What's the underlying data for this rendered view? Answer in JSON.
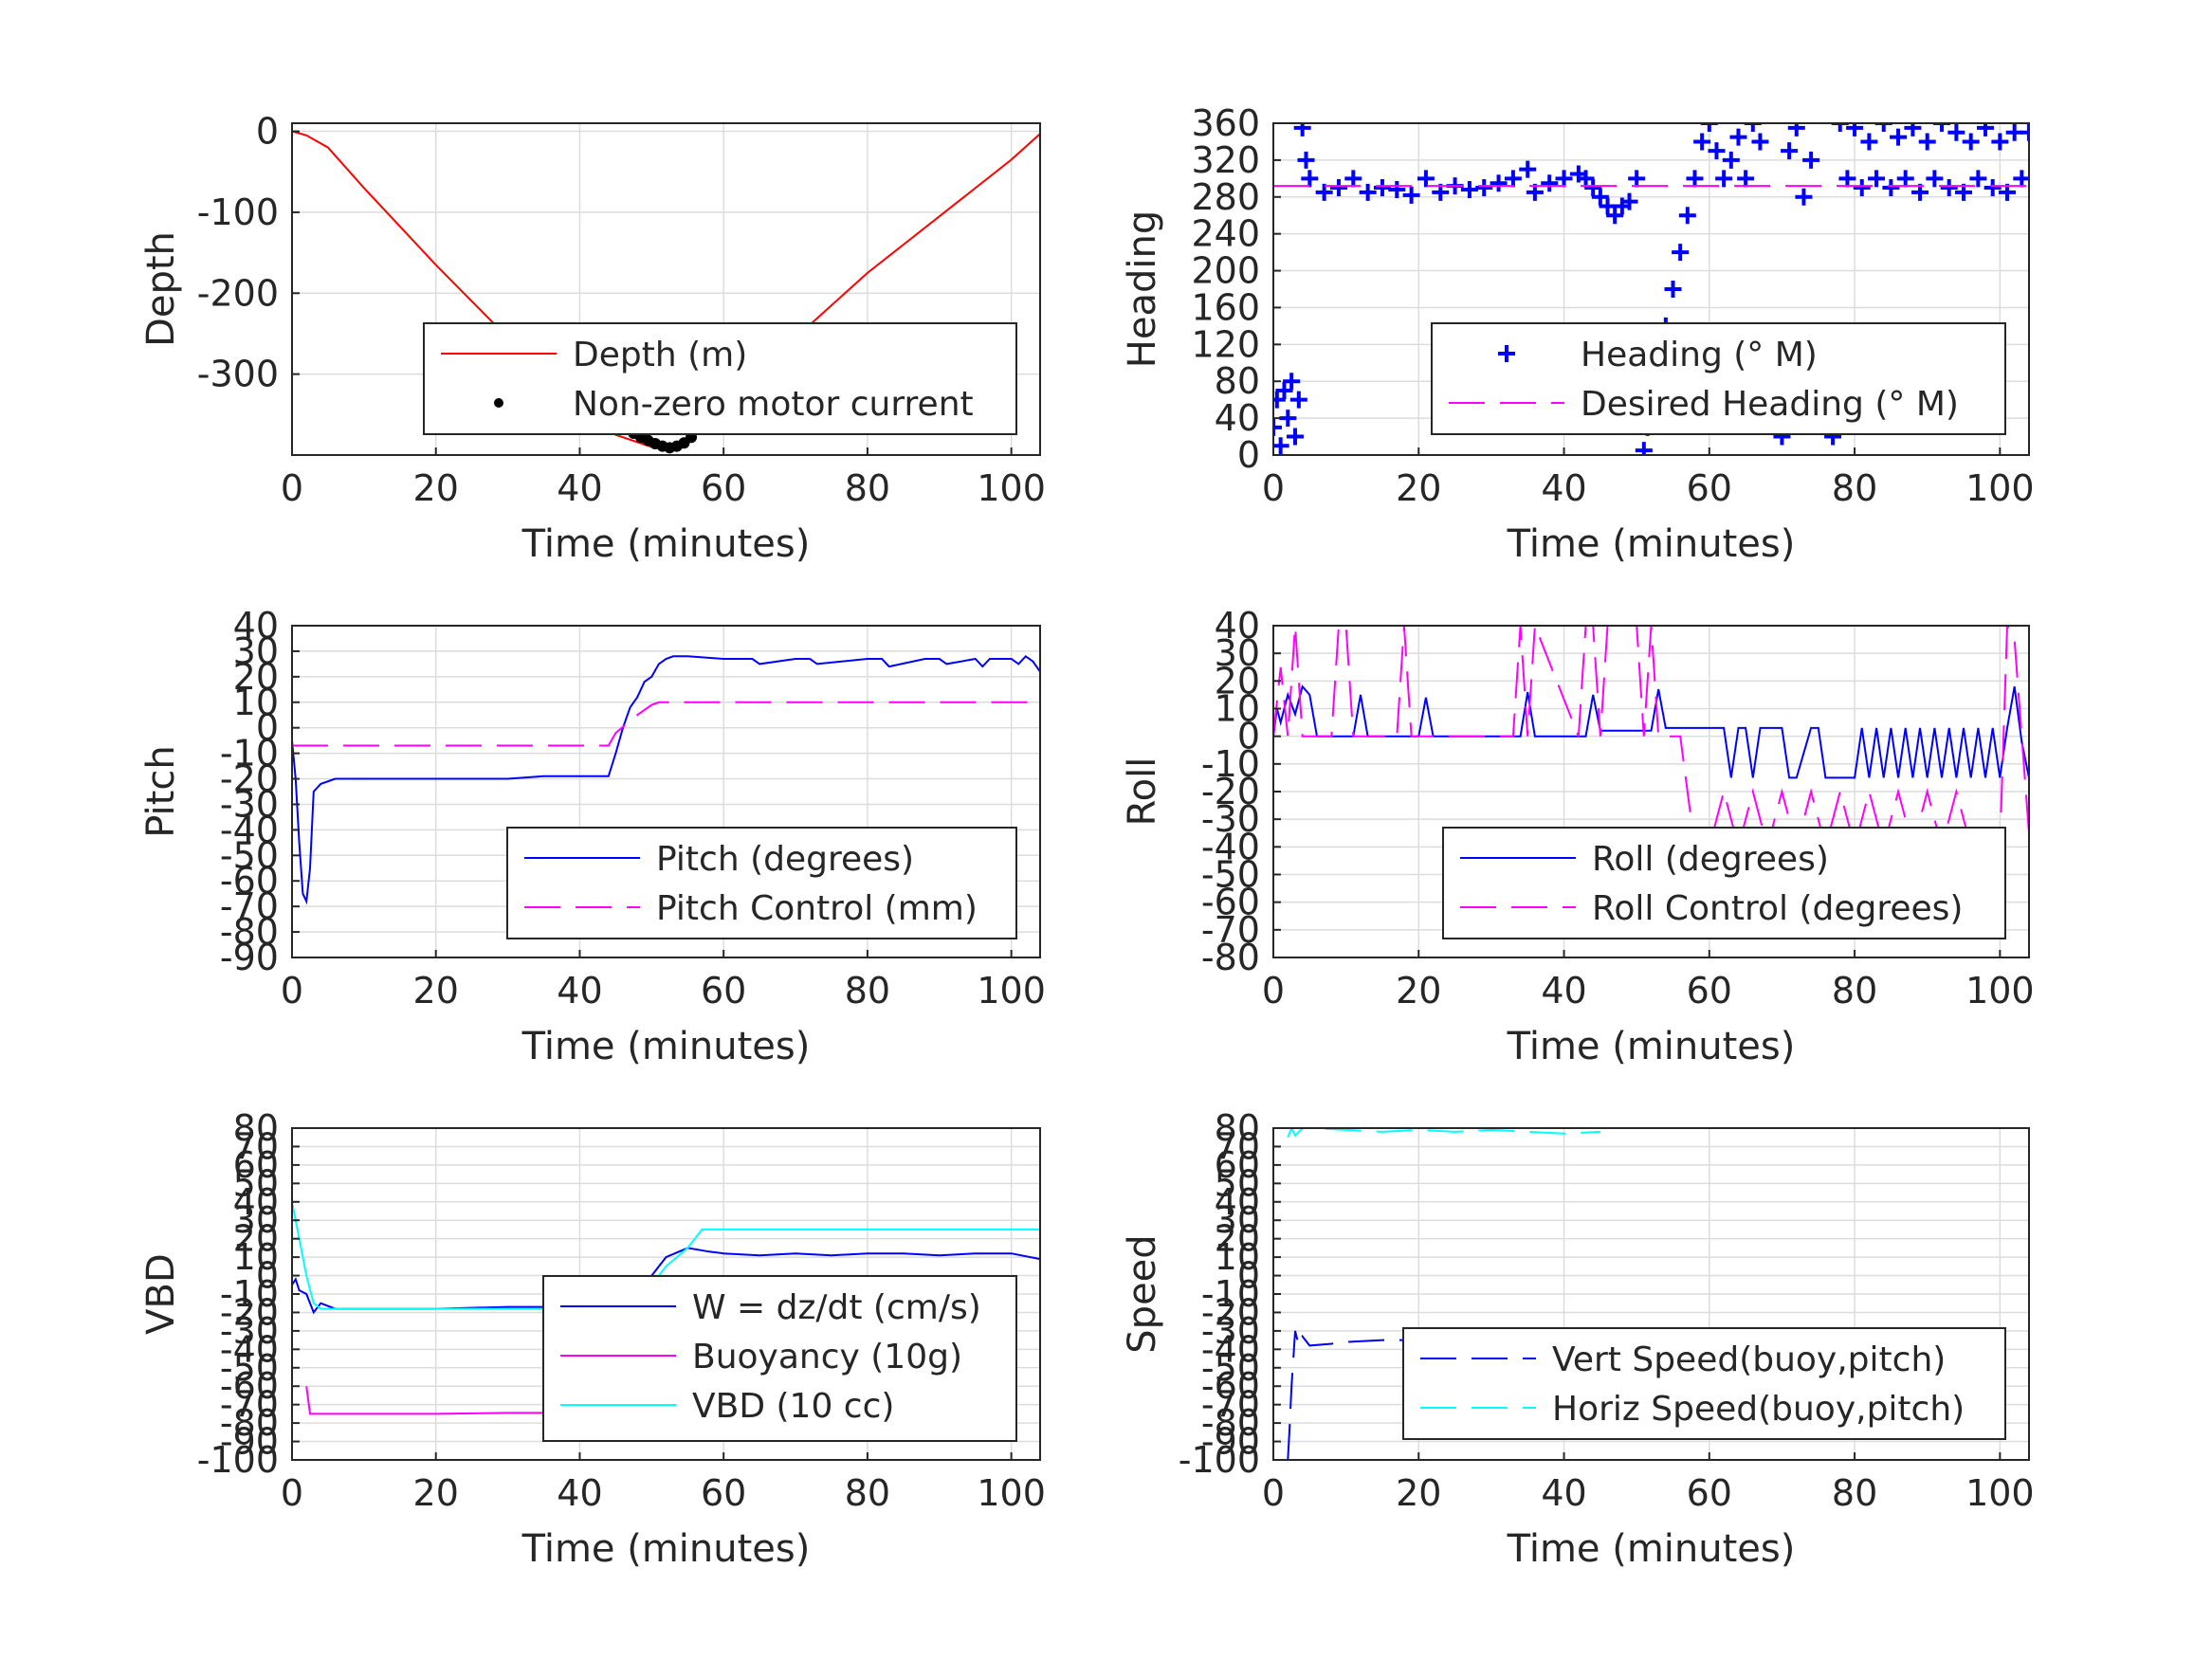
{
  "figure": {
    "background": "#ffffff"
  },
  "chart_data": [
    {
      "id": "depth",
      "type": "line",
      "xlabel": "Time (minutes)",
      "ylabel": "Depth",
      "xlim": [
        0,
        104
      ],
      "ylim": [
        -400,
        10
      ],
      "xticks": [
        0,
        20,
        40,
        60,
        80,
        100
      ],
      "yticks": [
        0,
        -100,
        -200,
        -300
      ],
      "grid": true,
      "legend_placement": "lower-right",
      "series": [
        {
          "name": "Depth (m)",
          "color": "#ff0000",
          "style": "solid",
          "x": [
            0,
            2,
            5,
            10,
            20,
            30,
            40,
            45,
            50,
            52,
            55,
            60,
            70,
            80,
            90,
            100,
            104
          ],
          "y": [
            0,
            -5,
            -20,
            -70,
            -165,
            -255,
            -345,
            -375,
            -390,
            -393,
            -385,
            -335,
            -255,
            -175,
            -105,
            -35,
            -3
          ]
        },
        {
          "name": "Non-zero motor current",
          "color": "#000000",
          "style": "dot",
          "x": [
            45.5,
            46.5,
            47.5,
            48.5,
            49.5,
            50.5,
            51.5,
            52.5,
            53.5,
            54.5,
            55.5,
            56.5
          ],
          "y": [
            -362,
            -368,
            -373,
            -378,
            -382,
            -386,
            -389,
            -391,
            -389,
            -385,
            -378,
            -368
          ]
        }
      ]
    },
    {
      "id": "heading",
      "type": "line",
      "xlabel": "Time (minutes)",
      "ylabel": "Heading",
      "xlim": [
        0,
        104
      ],
      "ylim": [
        0,
        360
      ],
      "xticks": [
        0,
        20,
        40,
        60,
        80,
        100
      ],
      "yticks": [
        0,
        40,
        80,
        120,
        160,
        200,
        240,
        280,
        320,
        360
      ],
      "grid": true,
      "legend_placement": "lower-right",
      "series": [
        {
          "name": "Heading (° M)",
          "color": "#0000ff",
          "style": "plus",
          "x": [
            0,
            0.5,
            1,
            1.5,
            2,
            2.5,
            3,
            3.5,
            4,
            4.5,
            5,
            7,
            9,
            11,
            13,
            15,
            17,
            19,
            21,
            23,
            25,
            27,
            29,
            31,
            33,
            35,
            36,
            38,
            40,
            42,
            43,
            44,
            45,
            46,
            47,
            48,
            49,
            50,
            51,
            51.5,
            52,
            53,
            54,
            55,
            56,
            57,
            58,
            59,
            60,
            61,
            62,
            63,
            64,
            65,
            66,
            67,
            68,
            69,
            70,
            71,
            72,
            73,
            74,
            75,
            76,
            77,
            78,
            79,
            80,
            81,
            82,
            83,
            84,
            85,
            86,
            87,
            88,
            89,
            90,
            91,
            92,
            93,
            94,
            95,
            96,
            97,
            98,
            99,
            100,
            101,
            102,
            103,
            104
          ],
          "y": [
            30,
            60,
            10,
            70,
            40,
            80,
            20,
            60,
            355,
            320,
            300,
            285,
            290,
            300,
            285,
            290,
            288,
            282,
            300,
            285,
            292,
            288,
            290,
            295,
            300,
            310,
            285,
            295,
            300,
            305,
            300,
            290,
            280,
            270,
            260,
            270,
            275,
            300,
            5,
            30,
            60,
            100,
            140,
            180,
            220,
            260,
            300,
            340,
            360,
            330,
            300,
            320,
            345,
            300,
            360,
            340,
            100,
            60,
            20,
            330,
            355,
            280,
            320,
            100,
            60,
            20,
            360,
            300,
            355,
            290,
            340,
            300,
            360,
            290,
            345,
            300,
            355,
            285,
            340,
            300,
            360,
            290,
            350,
            285,
            340,
            300,
            355,
            290,
            340,
            285,
            350,
            300,
            350
          ]
        },
        {
          "name": "Desired Heading (° M)",
          "color": "#ff00ff",
          "style": "dashed",
          "x": [
            0,
            104
          ],
          "y": [
            292,
            292
          ]
        }
      ]
    },
    {
      "id": "pitch",
      "type": "line",
      "xlabel": "Time (minutes)",
      "ylabel": "Pitch",
      "xlim": [
        0,
        104
      ],
      "ylim": [
        -90,
        40
      ],
      "xticks": [
        0,
        20,
        40,
        60,
        80,
        100
      ],
      "yticks": [
        40,
        30,
        20,
        10,
        0,
        -10,
        -20,
        -30,
        -40,
        -50,
        -60,
        -70,
        -80,
        -90
      ],
      "grid": true,
      "legend_placement": "lower-right",
      "series": [
        {
          "name": "Pitch (degrees)",
          "color": "#0000ff",
          "style": "solid",
          "x": [
            0,
            0.5,
            1,
            1.5,
            2,
            2.5,
            3,
            4,
            6,
            10,
            15,
            20,
            25,
            30,
            35,
            40,
            44,
            45,
            46,
            47,
            48,
            49,
            50,
            51,
            52,
            53,
            55,
            60,
            64,
            65,
            70,
            72,
            73,
            80,
            82,
            83,
            88,
            90,
            91,
            95,
            96,
            97,
            100,
            101,
            102,
            103,
            104
          ],
          "y": [
            -5,
            -20,
            -45,
            -65,
            -68,
            -55,
            -25,
            -22,
            -20,
            -20,
            -20,
            -20,
            -20,
            -20,
            -19,
            -19,
            -19,
            -10,
            0,
            8,
            12,
            18,
            20,
            25,
            27,
            28,
            28,
            27,
            27,
            25,
            27,
            27,
            25,
            27,
            27,
            24,
            27,
            27,
            25,
            27,
            24,
            27,
            27,
            25,
            28,
            26,
            22
          ]
        },
        {
          "name": "Pitch Control (mm)",
          "color": "#ff00ff",
          "style": "dashed",
          "x": [
            0,
            44,
            45,
            48,
            50,
            51,
            104
          ],
          "y": [
            -7,
            -7,
            -2,
            5,
            9,
            10,
            10
          ]
        }
      ]
    },
    {
      "id": "roll",
      "type": "line",
      "xlabel": "Time (minutes)",
      "ylabel": "Roll",
      "xlim": [
        0,
        104
      ],
      "ylim": [
        -80,
        40
      ],
      "xticks": [
        0,
        20,
        40,
        60,
        80,
        100
      ],
      "yticks": [
        40,
        30,
        20,
        10,
        0,
        -10,
        -20,
        -30,
        -40,
        -50,
        -60,
        -70,
        -80
      ],
      "grid": true,
      "legend_placement": "lower-right",
      "series": [
        {
          "name": "Roll (degrees)",
          "color": "#0000ff",
          "style": "solid",
          "x": [
            0,
            0.5,
            1,
            2,
            3,
            4,
            5,
            6,
            11,
            12,
            13,
            20,
            21,
            22,
            34,
            35,
            36,
            43,
            44,
            45,
            52,
            53,
            54,
            62,
            63,
            64,
            65,
            66,
            67,
            70,
            71,
            72,
            74,
            75,
            76,
            80,
            81,
            82,
            83,
            84,
            85,
            86,
            87,
            88,
            89,
            90,
            91,
            92,
            93,
            94,
            95,
            96,
            97,
            98,
            99,
            100,
            101,
            102,
            103,
            104
          ],
          "y": [
            0,
            10,
            5,
            15,
            8,
            18,
            15,
            0,
            0,
            15,
            0,
            0,
            14,
            0,
            0,
            16,
            0,
            0,
            15,
            2,
            2,
            17,
            3,
            3,
            -15,
            3,
            3,
            -15,
            3,
            3,
            -15,
            -15,
            3,
            3,
            -15,
            -15,
            3,
            -15,
            3,
            -15,
            3,
            -15,
            3,
            -15,
            3,
            -15,
            3,
            -15,
            3,
            -15,
            3,
            -15,
            3,
            -15,
            3,
            -15,
            3,
            18,
            -2,
            -15
          ]
        },
        {
          "name": "Roll Control (degrees)",
          "color": "#ff00ff",
          "style": "dashed",
          "x": [
            0,
            1,
            2,
            3,
            4,
            5,
            8,
            9,
            10,
            11,
            17,
            18,
            19,
            33,
            34,
            35,
            36,
            42,
            43,
            44,
            45,
            46,
            50,
            51,
            52,
            53,
            55,
            56,
            57,
            58,
            60,
            62,
            64,
            66,
            68,
            70,
            72,
            74,
            76,
            78,
            80,
            82,
            84,
            86,
            88,
            90,
            92,
            94,
            96,
            98,
            100,
            101,
            102,
            103,
            104
          ],
          "y": [
            0,
            25,
            0,
            40,
            0,
            0,
            0,
            40,
            40,
            0,
            0,
            40,
            0,
            0,
            40,
            0,
            40,
            0,
            40,
            40,
            0,
            40,
            40,
            0,
            40,
            0,
            0,
            0,
            -20,
            -40,
            -40,
            -20,
            -40,
            -20,
            -40,
            -20,
            -40,
            -20,
            -40,
            -20,
            -40,
            -20,
            -40,
            -20,
            -40,
            -20,
            -40,
            -20,
            -40,
            -40,
            -40,
            40,
            35,
            0,
            -35
          ]
        }
      ]
    },
    {
      "id": "vbd",
      "type": "line",
      "xlabel": "Time (minutes)",
      "ylabel": "VBD",
      "xlim": [
        0,
        104
      ],
      "ylim": [
        -100,
        80
      ],
      "xticks": [
        0,
        20,
        40,
        60,
        80,
        100
      ],
      "yticks": [
        80,
        70,
        60,
        50,
        40,
        30,
        20,
        10,
        0,
        -10,
        -20,
        -30,
        -40,
        -50,
        -60,
        -70,
        -80,
        -90,
        -100
      ],
      "grid": true,
      "legend_placement": "lower-right",
      "series": [
        {
          "name": "W = dz/dt (cm/s)",
          "color": "#0000ff",
          "style": "solid",
          "x": [
            0,
            0.5,
            1,
            2,
            3,
            4,
            6,
            10,
            20,
            30,
            40,
            44,
            45,
            46,
            48,
            50,
            52,
            55,
            58,
            60,
            65,
            70,
            75,
            80,
            85,
            90,
            95,
            100,
            104
          ],
          "y": [
            -5,
            -2,
            -8,
            -10,
            -20,
            -15,
            -18,
            -18,
            -18,
            -17,
            -17,
            -17,
            -5,
            -8,
            -5,
            0,
            10,
            15,
            13,
            12,
            11,
            12,
            11,
            12,
            12,
            11,
            12,
            12,
            9
          ]
        },
        {
          "name": "Buoyancy (10g)",
          "color": "#ff00ff",
          "style": "solid",
          "x": [
            2,
            2.5,
            5,
            10,
            20,
            30,
            40,
            44.5
          ],
          "y": [
            -60,
            -75,
            -75,
            -75,
            -75,
            -74.5,
            -74.5,
            -74.5
          ]
        },
        {
          "name": "VBD (10 cc)",
          "color": "#00ffff",
          "style": "solid",
          "x": [
            0,
            1,
            2,
            3,
            4,
            5,
            10,
            20,
            30,
            40,
            45,
            48,
            50,
            52,
            55,
            57,
            58,
            60,
            70,
            80,
            90,
            100,
            104
          ],
          "y": [
            40,
            20,
            0,
            -15,
            -18,
            -18,
            -18,
            -18,
            -18,
            -18,
            -18,
            -12,
            -5,
            5,
            15,
            25,
            25,
            25,
            25,
            25,
            25,
            25,
            25
          ]
        }
      ]
    },
    {
      "id": "speed",
      "type": "line",
      "xlabel": "Time (minutes)",
      "ylabel": "Speed",
      "xlim": [
        0,
        104
      ],
      "ylim": [
        -100,
        80
      ],
      "xticks": [
        0,
        20,
        40,
        60,
        80,
        100
      ],
      "yticks": [
        80,
        70,
        60,
        50,
        40,
        30,
        20,
        10,
        0,
        -10,
        -20,
        -30,
        -40,
        -50,
        -60,
        -70,
        -80,
        -90,
        -100
      ],
      "grid": true,
      "legend_placement": "lower-right",
      "series": [
        {
          "name": "Vert Speed(buoy,pitch)",
          "color": "#0000ff",
          "style": "dashed",
          "x": [
            2,
            2.2,
            2.5,
            3,
            3.5,
            4,
            5,
            8,
            10,
            15,
            20,
            25,
            30,
            35,
            40,
            45
          ],
          "y": [
            -100,
            -85,
            -60,
            -30,
            -38,
            -33,
            -38,
            -37,
            -36,
            -35,
            -35,
            -34,
            -35,
            -34,
            -35,
            -34
          ]
        },
        {
          "name": "Horiz Speed(buoy,pitch)",
          "color": "#00ffff",
          "style": "dashed",
          "x": [
            2,
            2.5,
            3,
            4,
            5,
            10,
            15,
            20,
            25,
            30,
            35,
            40,
            45
          ],
          "y": [
            75,
            80,
            76,
            80,
            80,
            79,
            78,
            79,
            78,
            79,
            78,
            77,
            78
          ]
        }
      ]
    }
  ]
}
